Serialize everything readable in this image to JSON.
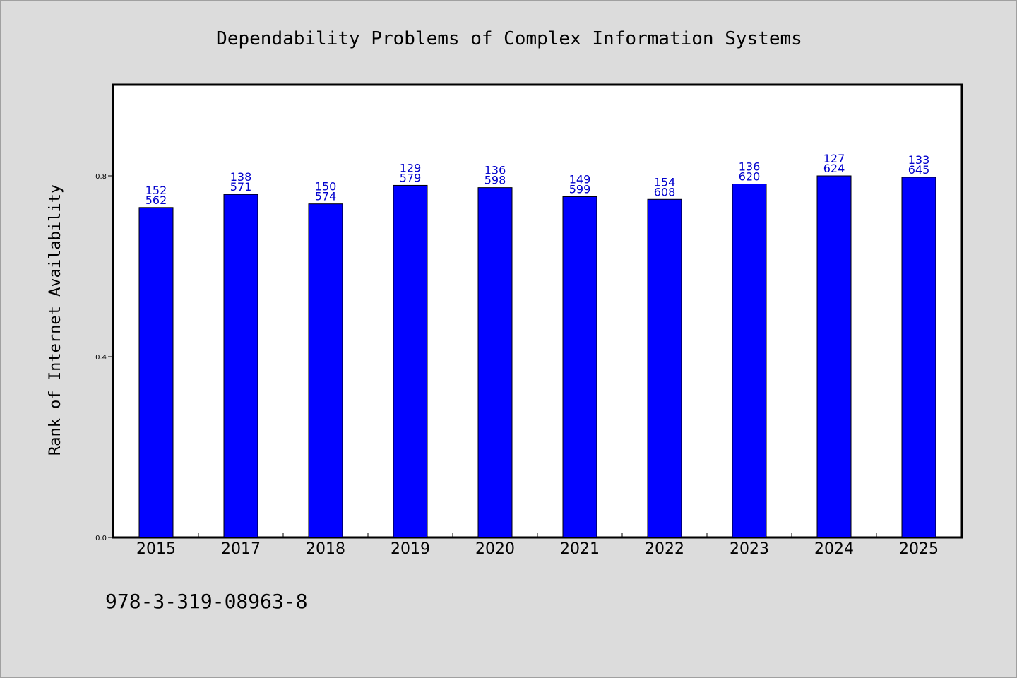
{
  "colors": {
    "background": "#dcdcdc",
    "plot_background": "#ffffff",
    "bar_fill": "#0000ff",
    "bar_stroke": "#000000",
    "data_label": "#0000cc",
    "axis": "#000000"
  },
  "footer": {
    "isbn": "978-3-319-08963-8"
  },
  "chart_data": {
    "type": "bar",
    "title": "Dependability Problems of Complex Information Systems",
    "xlabel": "",
    "ylabel": "Rank of Internet Availability",
    "categories": [
      "2015",
      "2017",
      "2018",
      "2019",
      "2020",
      "2021",
      "2022",
      "2023",
      "2024",
      "2025"
    ],
    "values": [
      0.73,
      0.759,
      0.738,
      0.779,
      0.774,
      0.754,
      0.748,
      0.782,
      0.8,
      0.797
    ],
    "labels_top": [
      "152",
      "138",
      "150",
      "129",
      "136",
      "149",
      "154",
      "136",
      "127",
      "133"
    ],
    "labels_bottom": [
      "562",
      "571",
      "574",
      "579",
      "598",
      "599",
      "608",
      "620",
      "624",
      "645"
    ],
    "ylim": [
      0,
      1.0
    ],
    "yticks": [
      0.0,
      0.4,
      0.8
    ],
    "ytick_labels": [
      "0.0",
      "0.4",
      "0.8"
    ],
    "grid": false,
    "legend": "none"
  }
}
